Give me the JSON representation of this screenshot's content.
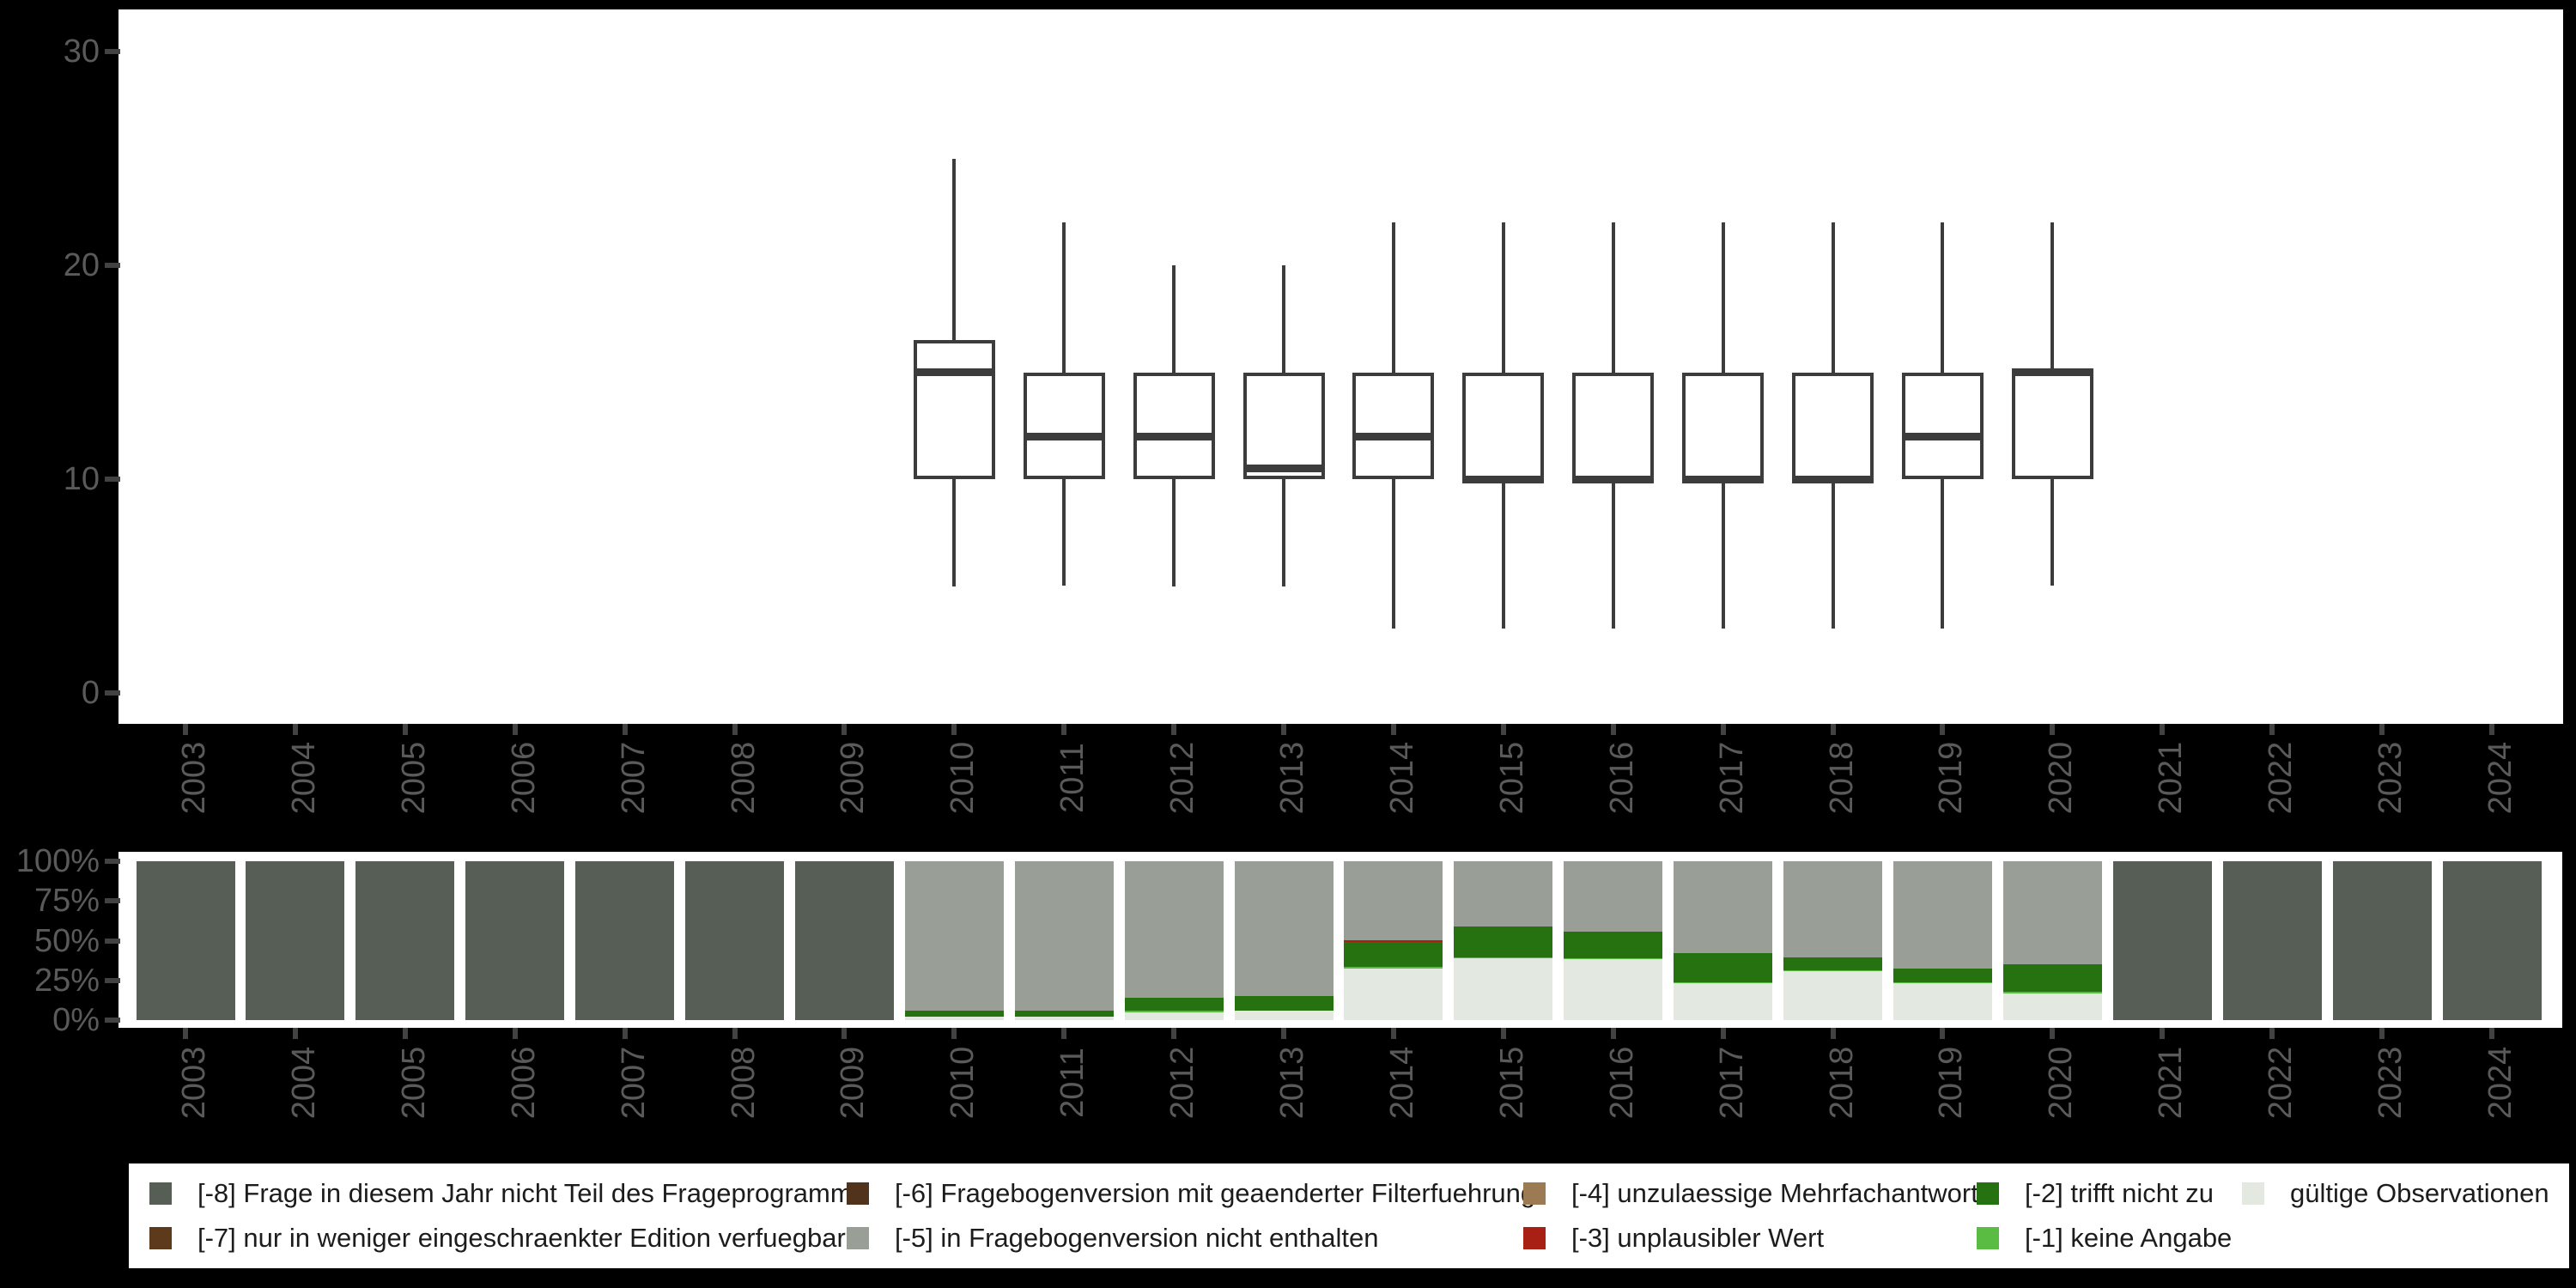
{
  "colors": {
    "background": "#000000",
    "panel": "#ffffff",
    "box_stroke": "#3c3c3c",
    "axis_text": "#5a5a5a",
    "tick": "#424242",
    "legend_text": "#1c1c1c"
  },
  "years": [
    "2003",
    "2004",
    "2005",
    "2006",
    "2007",
    "2008",
    "2009",
    "2010",
    "2011",
    "2012",
    "2013",
    "2014",
    "2015",
    "2016",
    "2017",
    "2018",
    "2019",
    "2020",
    "2021",
    "2022",
    "2023",
    "2024"
  ],
  "categories": {
    "-8": {
      "label": "[-8] Frage in diesem Jahr nicht Teil des Frageprogramms",
      "color": "#565e56"
    },
    "-7": {
      "label": "[-7] nur in weniger eingeschraenkter Edition verfuegbar",
      "color": "#5e3a1d"
    },
    "-6": {
      "label": "[-6] Fragebogenversion mit geaenderter Filterfuehrung",
      "color": "#50331a"
    },
    "-5": {
      "label": "[-5] in Fragebogenversion nicht enthalten",
      "color": "#999f97"
    },
    "-4": {
      "label": "[-4] unzulaessige Mehrfachantwort",
      "color": "#9c7a54"
    },
    "-3": {
      "label": "[-3] unplausibler Wert",
      "color": "#a82014"
    },
    "-2": {
      "label": "[-2] trifft nicht zu",
      "color": "#267110"
    },
    "-1": {
      "label": "[-1] keine Angabe",
      "color": "#5abc43"
    },
    "valid": {
      "label": "gültige Observationen",
      "color": "#e3e8e1"
    }
  },
  "chart_data": [
    {
      "type": "boxplot",
      "title": "",
      "xlabel": "",
      "ylabel": "",
      "yticks": [
        0,
        10,
        20,
        30
      ],
      "ytick_labels": [
        "0",
        "10",
        "20",
        "30"
      ],
      "ylim": [
        -1.5,
        32
      ],
      "grid": false,
      "categories": [
        "2003",
        "2004",
        "2005",
        "2006",
        "2007",
        "2008",
        "2009",
        "2010",
        "2011",
        "2012",
        "2013",
        "2014",
        "2015",
        "2016",
        "2017",
        "2018",
        "2019",
        "2020",
        "2021",
        "2022",
        "2023",
        "2024"
      ],
      "series": [
        {
          "year": "2010",
          "min": 5,
          "q1": 10,
          "median": 15,
          "q3": 16.5,
          "max": 25
        },
        {
          "year": "2011",
          "min": 5,
          "q1": 10,
          "median": 12,
          "q3": 15,
          "max": 22
        },
        {
          "year": "2012",
          "min": 5,
          "q1": 10,
          "median": 12,
          "q3": 15,
          "max": 20
        },
        {
          "year": "2013",
          "min": 5,
          "q1": 10,
          "median": 10.5,
          "q3": 15,
          "max": 20
        },
        {
          "year": "2014",
          "min": 3,
          "q1": 10,
          "median": 12,
          "q3": 15,
          "max": 22
        },
        {
          "year": "2015",
          "min": 3,
          "q1": 10,
          "median": 10,
          "q3": 15,
          "max": 22
        },
        {
          "year": "2016",
          "min": 3,
          "q1": 10,
          "median": 10,
          "q3": 15,
          "max": 22
        },
        {
          "year": "2017",
          "min": 3,
          "q1": 10,
          "median": 10,
          "q3": 15,
          "max": 22
        },
        {
          "year": "2018",
          "min": 3,
          "q1": 10,
          "median": 10,
          "q3": 15,
          "max": 22
        },
        {
          "year": "2019",
          "min": 3,
          "q1": 10,
          "median": 12,
          "q3": 15,
          "max": 22
        },
        {
          "year": "2020",
          "min": 5,
          "q1": 10,
          "median": 15,
          "q3": 15,
          "max": 22
        }
      ]
    },
    {
      "type": "stacked_bar_percent",
      "title": "",
      "xlabel": "",
      "ylabel": "",
      "yticks": [
        0,
        25,
        50,
        75,
        100
      ],
      "ytick_labels": [
        "0%",
        "25%",
        "50%",
        "75%",
        "100%"
      ],
      "ylim": [
        0,
        100
      ],
      "grid": false,
      "legend_position": "bottom",
      "categories": [
        "2003",
        "2004",
        "2005",
        "2006",
        "2007",
        "2008",
        "2009",
        "2010",
        "2011",
        "2012",
        "2013",
        "2014",
        "2015",
        "2016",
        "2017",
        "2018",
        "2019",
        "2020",
        "2021",
        "2022",
        "2023",
        "2024"
      ],
      "bars": [
        {
          "year": "2003",
          "segments": [
            {
              "cat": "-8",
              "pct": 100
            }
          ]
        },
        {
          "year": "2004",
          "segments": [
            {
              "cat": "-8",
              "pct": 100
            }
          ]
        },
        {
          "year": "2005",
          "segments": [
            {
              "cat": "-8",
              "pct": 100
            }
          ]
        },
        {
          "year": "2006",
          "segments": [
            {
              "cat": "-8",
              "pct": 100
            }
          ]
        },
        {
          "year": "2007",
          "segments": [
            {
              "cat": "-8",
              "pct": 100
            }
          ]
        },
        {
          "year": "2008",
          "segments": [
            {
              "cat": "-8",
              "pct": 100
            }
          ]
        },
        {
          "year": "2009",
          "segments": [
            {
              "cat": "-8",
              "pct": 100
            }
          ]
        },
        {
          "year": "2010",
          "segments": [
            {
              "cat": "-5",
              "pct": 94
            },
            {
              "cat": "-2",
              "pct": 4
            },
            {
              "cat": "valid",
              "pct": 2
            }
          ]
        },
        {
          "year": "2011",
          "segments": [
            {
              "cat": "-5",
              "pct": 94
            },
            {
              "cat": "-2",
              "pct": 4
            },
            {
              "cat": "valid",
              "pct": 2
            }
          ]
        },
        {
          "year": "2012",
          "segments": [
            {
              "cat": "-5",
              "pct": 86
            },
            {
              "cat": "-2",
              "pct": 8
            },
            {
              "cat": "-1",
              "pct": 1
            },
            {
              "cat": "valid",
              "pct": 5
            }
          ]
        },
        {
          "year": "2013",
          "segments": [
            {
              "cat": "-5",
              "pct": 85
            },
            {
              "cat": "-2",
              "pct": 9
            },
            {
              "cat": "valid",
              "pct": 6
            }
          ]
        },
        {
          "year": "2014",
          "segments": [
            {
              "cat": "-5",
              "pct": 49.8
            },
            {
              "cat": "-3",
              "pct": 0.9
            },
            {
              "cat": "-2",
              "pct": 16
            },
            {
              "cat": "-1",
              "pct": 0.9
            },
            {
              "cat": "valid",
              "pct": 32.4
            }
          ]
        },
        {
          "year": "2015",
          "segments": [
            {
              "cat": "-5",
              "pct": 40.9
            },
            {
              "cat": "-2",
              "pct": 19.6
            },
            {
              "cat": "-1",
              "pct": 0.7
            },
            {
              "cat": "valid",
              "pct": 38.8
            }
          ]
        },
        {
          "year": "2016",
          "segments": [
            {
              "cat": "-5",
              "pct": 44.5
            },
            {
              "cat": "-2",
              "pct": 16.7
            },
            {
              "cat": "-1",
              "pct": 0.5
            },
            {
              "cat": "valid",
              "pct": 38.3
            }
          ]
        },
        {
          "year": "2017",
          "segments": [
            {
              "cat": "-5",
              "pct": 57.7
            },
            {
              "cat": "-2",
              "pct": 18.7
            },
            {
              "cat": "-1",
              "pct": 0.6
            },
            {
              "cat": "valid",
              "pct": 23
            }
          ]
        },
        {
          "year": "2018",
          "segments": [
            {
              "cat": "-5",
              "pct": 60.3
            },
            {
              "cat": "-2",
              "pct": 8.5
            },
            {
              "cat": "-1",
              "pct": 0.4
            },
            {
              "cat": "valid",
              "pct": 30.8
            }
          ]
        },
        {
          "year": "2019",
          "segments": [
            {
              "cat": "-5",
              "pct": 67.6
            },
            {
              "cat": "-2",
              "pct": 8.7
            },
            {
              "cat": "-1",
              "pct": 0.7
            },
            {
              "cat": "valid",
              "pct": 23
            }
          ]
        },
        {
          "year": "2020",
          "segments": [
            {
              "cat": "-5",
              "pct": 64.8
            },
            {
              "cat": "-2",
              "pct": 17.4
            },
            {
              "cat": "-1",
              "pct": 0.9
            },
            {
              "cat": "valid",
              "pct": 16.9
            }
          ]
        },
        {
          "year": "2021",
          "segments": [
            {
              "cat": "-8",
              "pct": 100
            }
          ]
        },
        {
          "year": "2022",
          "segments": [
            {
              "cat": "-8",
              "pct": 100
            }
          ]
        },
        {
          "year": "2023",
          "segments": [
            {
              "cat": "-8",
              "pct": 100
            }
          ]
        },
        {
          "year": "2024",
          "segments": [
            {
              "cat": "-8",
              "pct": 100
            }
          ]
        }
      ]
    }
  ],
  "legend": {
    "columns": [
      [
        "-8",
        "-7"
      ],
      [
        "-6",
        "-5"
      ],
      [
        "-4",
        "-3"
      ],
      [
        "-2",
        "-1"
      ],
      [
        "valid"
      ]
    ]
  }
}
